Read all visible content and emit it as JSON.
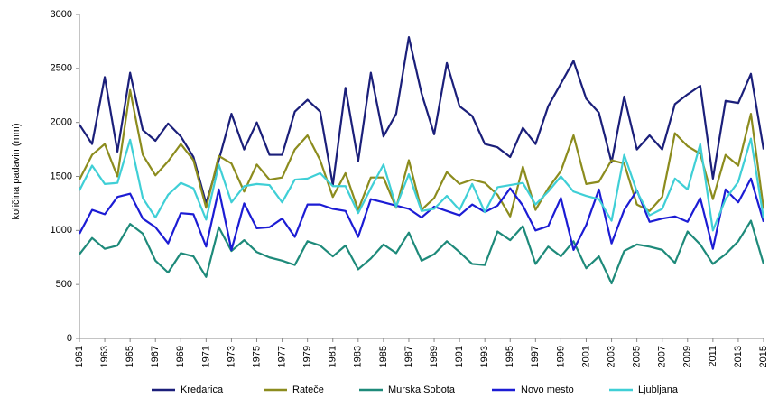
{
  "chart_data": {
    "type": "line",
    "y_label": "količina padavin (mm)",
    "x": [
      1961,
      1962,
      1963,
      1964,
      1965,
      1966,
      1967,
      1968,
      1969,
      1970,
      1971,
      1972,
      1973,
      1974,
      1975,
      1976,
      1977,
      1978,
      1979,
      1980,
      1981,
      1982,
      1983,
      1984,
      1985,
      1986,
      1987,
      1988,
      1989,
      1990,
      1991,
      1992,
      1993,
      1994,
      1995,
      1996,
      1997,
      1998,
      1999,
      2000,
      2001,
      2002,
      2003,
      2004,
      2005,
      2006,
      2007,
      2008,
      2009,
      2010,
      2011,
      2012,
      2013,
      2014,
      2015
    ],
    "xlim": [
      1961,
      2015
    ],
    "xticks": [
      1961,
      1963,
      1965,
      1967,
      1969,
      1971,
      1973,
      1975,
      1977,
      1979,
      1981,
      1983,
      1985,
      1987,
      1989,
      1991,
      1993,
      1995,
      1997,
      1999,
      2001,
      2003,
      2005,
      2007,
      2009,
      2011,
      2013,
      2015
    ],
    "ylim": [
      0,
      3000
    ],
    "yticks": [
      0,
      500,
      1000,
      1500,
      2000,
      2500,
      3000
    ],
    "grid": false,
    "legend": "bottom",
    "series": [
      {
        "name": "Kredarica",
        "color": "#1b1f7a",
        "values": [
          1980,
          1800,
          2420,
          1730,
          2460,
          1930,
          1830,
          1990,
          1870,
          1680,
          1250,
          1650,
          2080,
          1750,
          2000,
          1700,
          1700,
          2100,
          2210,
          2100,
          1420,
          2320,
          1640,
          2460,
          1870,
          2080,
          2790,
          2270,
          1890,
          2550,
          2150,
          2060,
          1800,
          1770,
          1680,
          1950,
          1800,
          2150,
          2360,
          2570,
          2220,
          2090,
          1630,
          2240,
          1750,
          1880,
          1750,
          2170,
          2260,
          2340,
          1480,
          2200,
          2180,
          2450,
          1750
        ]
      },
      {
        "name": "Rateče",
        "color": "#8c8c1e",
        "values": [
          1470,
          1700,
          1800,
          1500,
          2300,
          1700,
          1510,
          1640,
          1800,
          1650,
          1210,
          1690,
          1620,
          1360,
          1610,
          1470,
          1490,
          1750,
          1880,
          1650,
          1310,
          1530,
          1190,
          1490,
          1490,
          1210,
          1650,
          1190,
          1300,
          1540,
          1430,
          1470,
          1440,
          1330,
          1130,
          1590,
          1190,
          1390,
          1550,
          1880,
          1430,
          1450,
          1650,
          1620,
          1240,
          1180,
          1310,
          1900,
          1780,
          1710,
          1290,
          1700,
          1600,
          2080,
          1200
        ]
      },
      {
        "name": "Murska Sobota",
        "color": "#1e8a7a",
        "values": [
          780,
          930,
          830,
          860,
          1060,
          970,
          720,
          610,
          790,
          760,
          570,
          1030,
          810,
          910,
          800,
          750,
          720,
          680,
          900,
          860,
          760,
          860,
          640,
          740,
          870,
          790,
          980,
          720,
          780,
          900,
          800,
          690,
          680,
          990,
          910,
          1040,
          690,
          850,
          760,
          900,
          650,
          760,
          510,
          810,
          870,
          850,
          820,
          700,
          990,
          870,
          690,
          780,
          900,
          1090,
          690
        ]
      },
      {
        "name": "Novo mesto",
        "color": "#1c1cd4",
        "values": [
          970,
          1190,
          1150,
          1310,
          1340,
          1110,
          1030,
          880,
          1160,
          1150,
          850,
          1380,
          820,
          1250,
          1020,
          1030,
          1110,
          940,
          1240,
          1240,
          1200,
          1180,
          940,
          1290,
          1260,
          1230,
          1200,
          1120,
          1220,
          1180,
          1140,
          1240,
          1170,
          1230,
          1390,
          1230,
          1000,
          1040,
          1300,
          820,
          1050,
          1380,
          880,
          1190,
          1370,
          1080,
          1110,
          1130,
          1080,
          1300,
          830,
          1380,
          1260,
          1480,
          1080
        ]
      },
      {
        "name": "Ljubljana",
        "color": "#3fcfd6",
        "values": [
          1370,
          1600,
          1430,
          1440,
          1840,
          1300,
          1120,
          1330,
          1440,
          1390,
          1100,
          1610,
          1260,
          1410,
          1430,
          1420,
          1260,
          1470,
          1480,
          1530,
          1410,
          1410,
          1160,
          1390,
          1610,
          1220,
          1520,
          1180,
          1200,
          1320,
          1190,
          1430,
          1170,
          1400,
          1420,
          1440,
          1240,
          1360,
          1500,
          1360,
          1320,
          1290,
          1090,
          1700,
          1360,
          1140,
          1200,
          1480,
          1380,
          1800,
          1000,
          1290,
          1450,
          1850,
          1110
        ]
      }
    ]
  }
}
